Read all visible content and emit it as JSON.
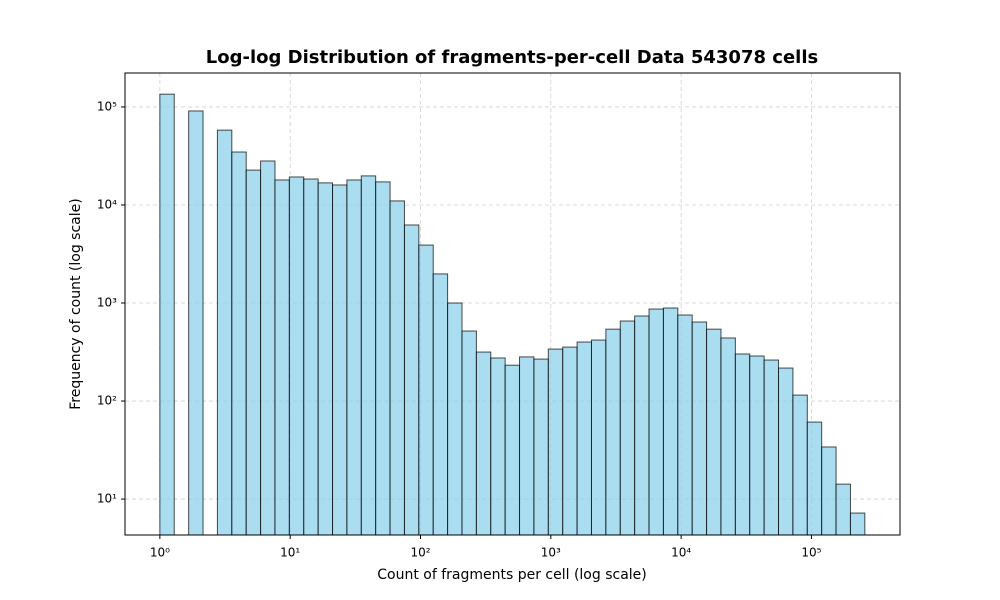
{
  "chart_data": {
    "type": "histogram",
    "title": "Log-log Distribution of fragments-per-cell Data 543078 cells",
    "x_label": "Count of fragments per cell (log scale)",
    "y_label": "Frequency of count (log scale)",
    "bins": [
      1,
      1.289,
      1.663,
      2.144,
      2.764,
      3.565,
      4.597,
      5.927,
      7.642,
      9.854,
      12.71,
      16.39,
      21.13,
      27.24,
      35.13,
      45.29,
      58.4,
      75.3,
      97.1,
      125.2,
      161.4,
      208.2,
      268.4,
      346.1,
      446.2,
      575.4,
      742,
      956.8,
      1234,
      1591,
      2051,
      2645,
      3411,
      4398,
      5671,
      7311,
      9428,
      12156,
      15674,
      20211,
      26062,
      33605,
      43332,
      55874,
      72047,
      92897,
      119784,
      154453,
      199156,
      256801
    ],
    "counts": [
      135000,
      0,
      91000,
      0,
      58000,
      34700,
      22700,
      28100,
      18000,
      19300,
      18400,
      16800,
      16000,
      18000,
      19800,
      17200,
      11000,
      6250,
      3900,
      1980,
      1000,
      518,
      316,
      275,
      232,
      282,
      268,
      339,
      355,
      400,
      419,
      541,
      655,
      737,
      868,
      889,
      754,
      640,
      541,
      440,
      302,
      288,
      262,
      217,
      115,
      61,
      34,
      14.2,
      7.2
    ],
    "color": "#87ceeb",
    "edgecolor": "#000000",
    "alpha": 0.7,
    "xscale": "log",
    "yscale": "log",
    "xlim": [
      0.54,
      478000
    ],
    "ylim": [
      4.3,
      222000
    ],
    "xticks": [
      {
        "value": 1,
        "label": "10⁰"
      },
      {
        "value": 10,
        "label": "10¹"
      },
      {
        "value": 100,
        "label": "10²"
      },
      {
        "value": 1000,
        "label": "10³"
      },
      {
        "value": 10000,
        "label": "10⁴"
      },
      {
        "value": 100000,
        "label": "10⁵"
      }
    ],
    "yticks": [
      {
        "value": 10,
        "label": "10¹"
      },
      {
        "value": 100,
        "label": "10²"
      },
      {
        "value": 1000,
        "label": "10³"
      },
      {
        "value": 10000,
        "label": "10⁴"
      },
      {
        "value": 100000,
        "label": "10⁵"
      }
    ],
    "grid": true
  }
}
